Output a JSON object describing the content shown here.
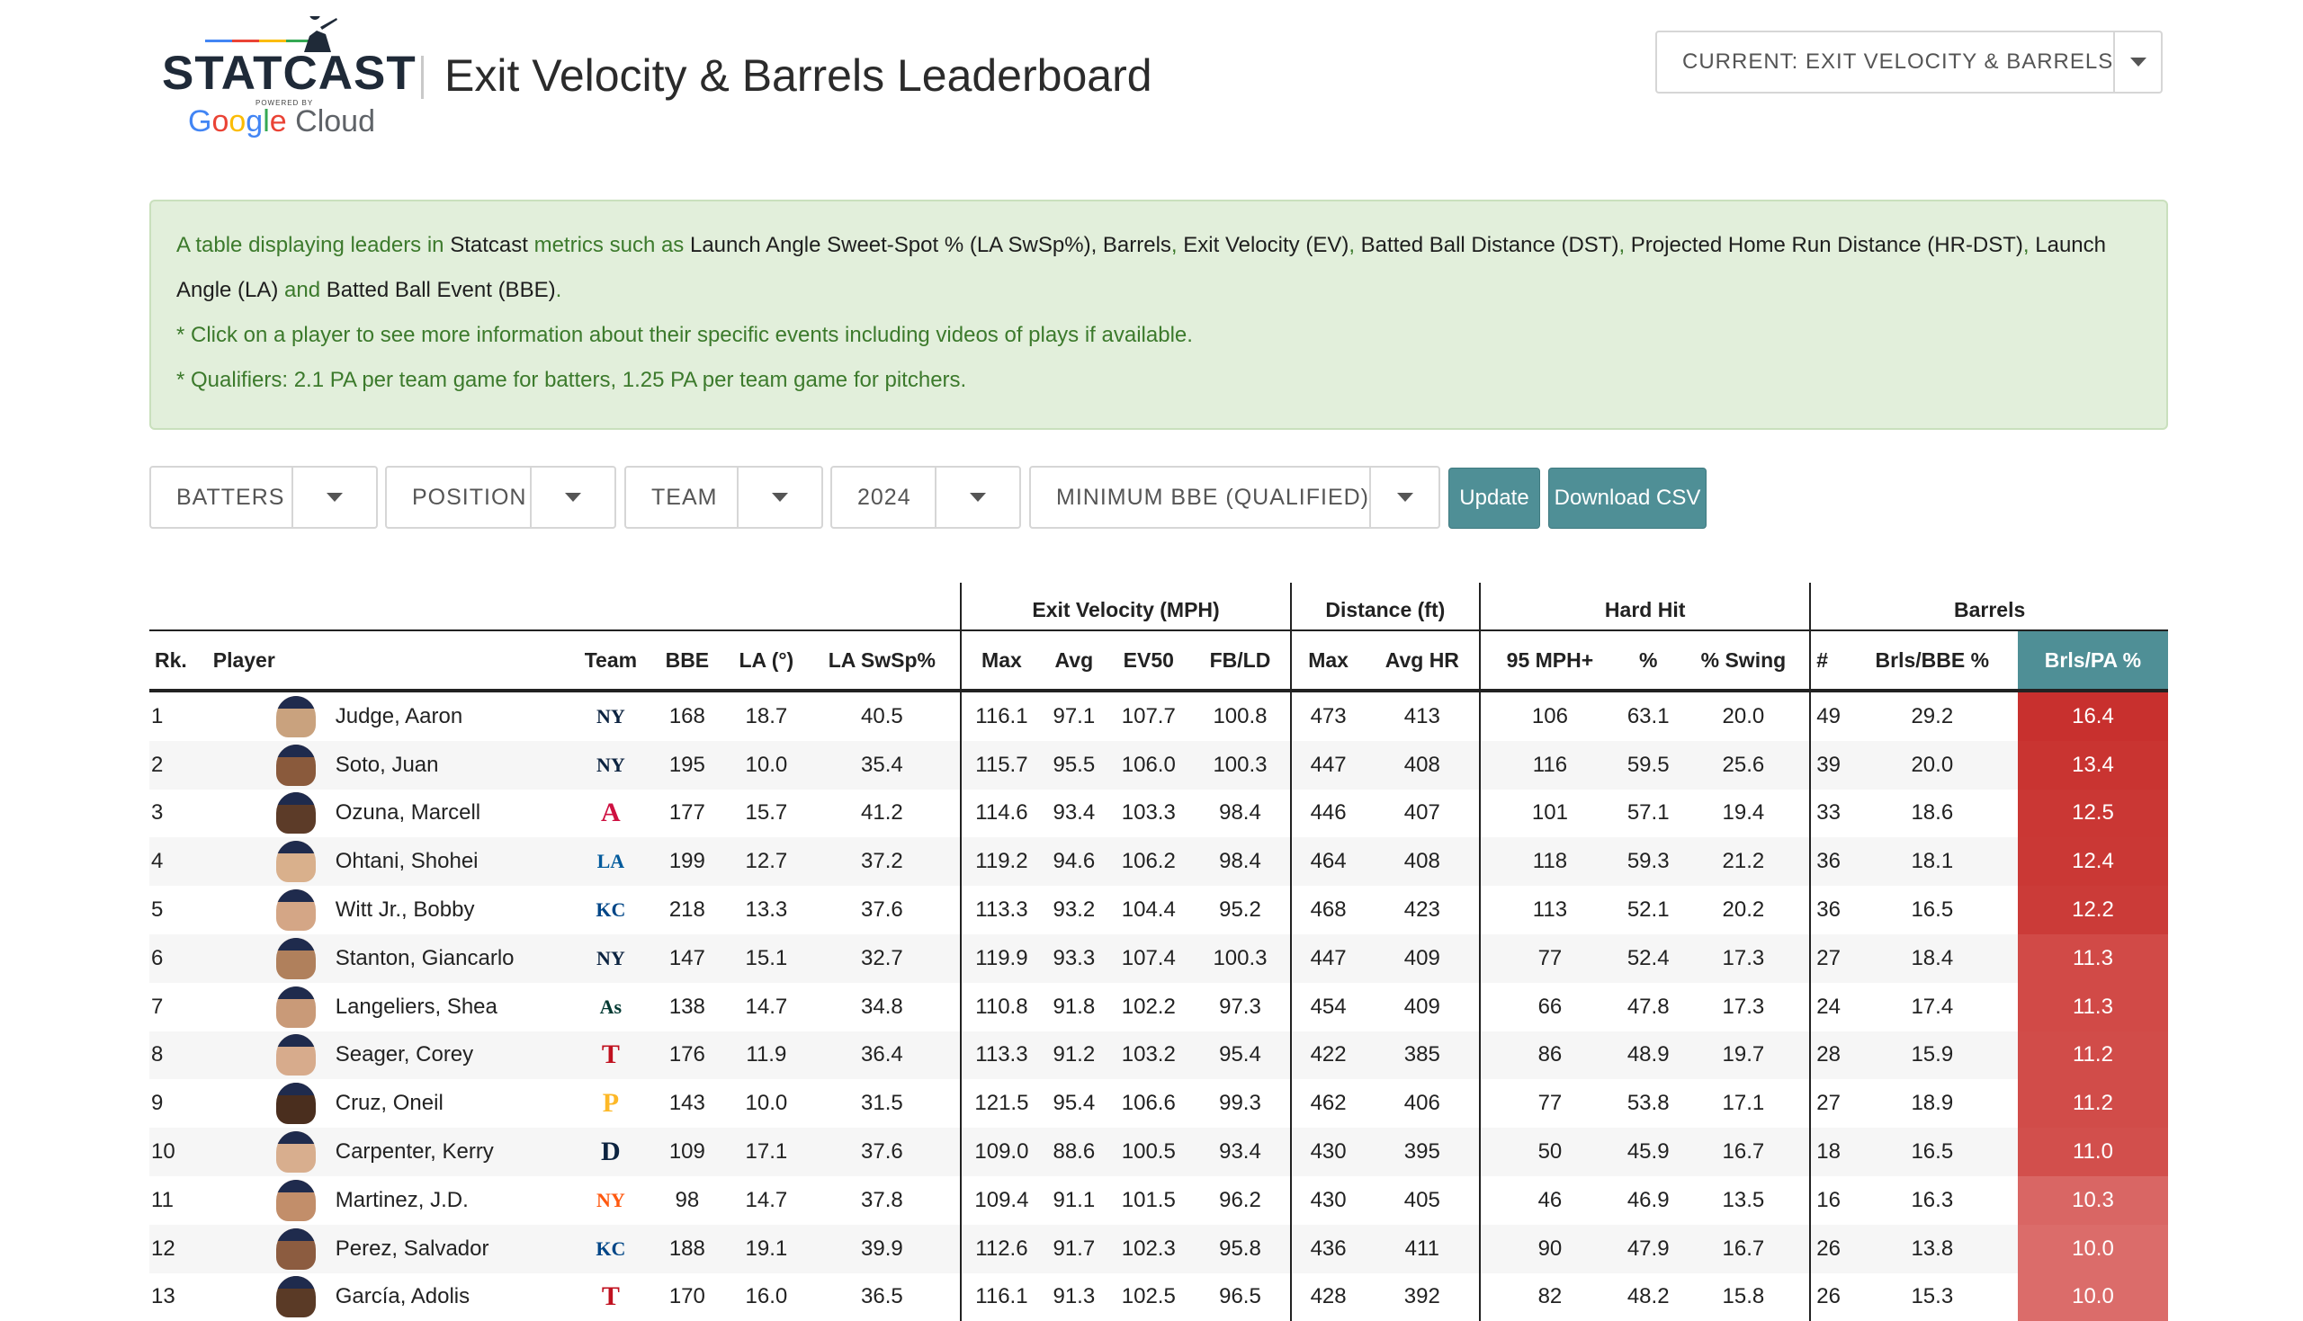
{
  "header": {
    "logo_text": "STATCAST",
    "logo_powered": "POWERED BY",
    "logo_cloud_text": "Cloud",
    "title": "Exit Velocity & Barrels Leaderboard",
    "view_select": "CURRENT: EXIT VELOCITY & BARRELS"
  },
  "info": {
    "line1_a": "A table displaying leaders in ",
    "line1_statcast": "Statcast",
    "line1_b": " metrics such as ",
    "m1": "Launch Angle Sweet-Spot % (LA SwSp%), Barrels",
    "m2": "Exit Velocity (EV)",
    "m3": "Batted Ball Distance (DST)",
    "m4": "Projected Home Run Distance (HR-DST)",
    "m5": "Launch Angle (LA)",
    "and": " and ",
    "m6": "Batted Ball Event (BBE)",
    "note1": "* Click on a player to see more information about their specific events including videos of plays if available.",
    "note2": "* Qualifiers: 2.1 PA per team game for batters, 1.25 PA per team game for pitchers."
  },
  "controls": {
    "player_type": "BATTERS",
    "position": "POSITION",
    "team": "TEAM",
    "year": "2024",
    "min_bbe": "MINIMUM BBE (QUALIFIED)",
    "update": "Update",
    "download": "Download CSV"
  },
  "table": {
    "groups": {
      "ev": "Exit Velocity (MPH)",
      "dist": "Distance (ft)",
      "hard": "Hard Hit",
      "barrels": "Barrels"
    },
    "columns": {
      "rk": "Rk.",
      "player": "Player",
      "team": "Team",
      "bbe": "BBE",
      "la": "LA (°)",
      "laswsp": "LA SwSp%",
      "max": "Max",
      "avg": "Avg",
      "ev50": "EV50",
      "fbld": "FB/LD",
      "dmax": "Max",
      "avghr": "Avg HR",
      "mph95": "95 MPH+",
      "pct": "%",
      "swing": "% Swing",
      "num": "#",
      "brlbbe": "Brls/BBE %",
      "brlpa": "Brls/PA %"
    },
    "colors": {
      "sort_header": "#4f8f96",
      "heat_high": "#c8302e",
      "heat_low": "#de7b79"
    },
    "rows": [
      {
        "rk": "1",
        "player": "Judge, Aaron",
        "team": "NY",
        "team_logo": "ny-yankees-logo",
        "team_color": "#0c2340",
        "skin": "#c9a27e",
        "bbe": "168",
        "la": "18.7",
        "laswsp": "40.5",
        "max": "116.1",
        "avg": "97.1",
        "ev50": "107.7",
        "fbld": "100.8",
        "dmax": "473",
        "avghr": "413",
        "mph95": "106",
        "pct": "63.1",
        "swing": "20.0",
        "num": "49",
        "brlbbe": "29.2",
        "brlpa": "16.4",
        "heat": "#c8302e"
      },
      {
        "rk": "2",
        "player": "Soto, Juan",
        "team": "NY",
        "team_logo": "ny-yankees-logo",
        "team_color": "#0c2340",
        "skin": "#8a5a3c",
        "bbe": "195",
        "la": "10.0",
        "laswsp": "35.4",
        "max": "115.7",
        "avg": "95.5",
        "ev50": "106.0",
        "fbld": "100.3",
        "dmax": "447",
        "avghr": "408",
        "mph95": "116",
        "pct": "59.5",
        "swing": "25.6",
        "num": "39",
        "brlbbe": "20.0",
        "brlpa": "13.4",
        "heat": "#c93431"
      },
      {
        "rk": "3",
        "player": "Ozuna, Marcell",
        "team": "A",
        "team_logo": "braves-logo",
        "team_color": "#ce1141",
        "skin": "#5c3b28",
        "bbe": "177",
        "la": "15.7",
        "laswsp": "41.2",
        "max": "114.6",
        "avg": "93.4",
        "ev50": "103.3",
        "fbld": "98.4",
        "dmax": "446",
        "avghr": "407",
        "mph95": "101",
        "pct": "57.1",
        "swing": "19.4",
        "num": "33",
        "brlbbe": "18.6",
        "brlpa": "12.5",
        "heat": "#ca3734"
      },
      {
        "rk": "4",
        "player": "Ohtani, Shohei",
        "team": "LA",
        "team_logo": "dodgers-logo",
        "team_color": "#005a9c",
        "skin": "#d9b08c",
        "bbe": "199",
        "la": "12.7",
        "laswsp": "37.2",
        "max": "119.2",
        "avg": "94.6",
        "ev50": "106.2",
        "fbld": "98.4",
        "dmax": "464",
        "avghr": "408",
        "mph95": "118",
        "pct": "59.3",
        "swing": "21.2",
        "num": "36",
        "brlbbe": "18.1",
        "brlpa": "12.4",
        "heat": "#ca3835"
      },
      {
        "rk": "5",
        "player": "Witt Jr., Bobby",
        "team": "KC",
        "team_logo": "royals-logo",
        "team_color": "#004687",
        "skin": "#d4a686",
        "bbe": "218",
        "la": "13.3",
        "laswsp": "37.6",
        "max": "113.3",
        "avg": "93.2",
        "ev50": "104.4",
        "fbld": "95.2",
        "dmax": "468",
        "avghr": "423",
        "mph95": "113",
        "pct": "52.1",
        "swing": "20.2",
        "num": "36",
        "brlbbe": "16.5",
        "brlpa": "12.2",
        "heat": "#cb3b38"
      },
      {
        "rk": "6",
        "player": "Stanton, Giancarlo",
        "team": "NY",
        "team_logo": "ny-yankees-logo",
        "team_color": "#0c2340",
        "skin": "#b0805c",
        "bbe": "147",
        "la": "15.1",
        "laswsp": "32.7",
        "max": "119.9",
        "avg": "93.3",
        "ev50": "107.4",
        "fbld": "100.3",
        "dmax": "447",
        "avghr": "409",
        "mph95": "77",
        "pct": "52.4",
        "swing": "17.3",
        "num": "27",
        "brlbbe": "18.4",
        "brlpa": "11.3",
        "heat": "#d14a47"
      },
      {
        "rk": "7",
        "player": "Langeliers, Shea",
        "team": "As",
        "team_logo": "athletics-logo",
        "team_color": "#003831",
        "skin": "#c99a78",
        "bbe": "138",
        "la": "14.7",
        "laswsp": "34.8",
        "max": "110.8",
        "avg": "91.8",
        "ev50": "102.2",
        "fbld": "97.3",
        "dmax": "454",
        "avghr": "409",
        "mph95": "66",
        "pct": "47.8",
        "swing": "17.3",
        "num": "24",
        "brlbbe": "17.4",
        "brlpa": "11.3",
        "heat": "#d14a47"
      },
      {
        "rk": "8",
        "player": "Seager, Corey",
        "team": "T",
        "team_logo": "rangers-logo",
        "team_color": "#c0111f",
        "skin": "#d7ab8c",
        "bbe": "176",
        "la": "11.9",
        "laswsp": "36.4",
        "max": "113.3",
        "avg": "91.2",
        "ev50": "103.2",
        "fbld": "95.4",
        "dmax": "422",
        "avghr": "385",
        "mph95": "86",
        "pct": "48.9",
        "swing": "19.7",
        "num": "28",
        "brlbbe": "15.9",
        "brlpa": "11.2",
        "heat": "#d14c49"
      },
      {
        "rk": "9",
        "player": "Cruz, Oneil",
        "team": "P",
        "team_logo": "pirates-logo",
        "team_color": "#fdb827",
        "skin": "#4a2e1e",
        "bbe": "143",
        "la": "10.0",
        "laswsp": "31.5",
        "max": "121.5",
        "avg": "95.4",
        "ev50": "106.6",
        "fbld": "99.3",
        "dmax": "462",
        "avghr": "406",
        "mph95": "77",
        "pct": "53.8",
        "swing": "17.1",
        "num": "27",
        "brlbbe": "18.9",
        "brlpa": "11.2",
        "heat": "#d14c49"
      },
      {
        "rk": "10",
        "player": "Carpenter, Kerry",
        "team": "D",
        "team_logo": "tigers-logo",
        "team_color": "#0c2340",
        "skin": "#d8ae8e",
        "bbe": "109",
        "la": "17.1",
        "laswsp": "37.6",
        "max": "109.0",
        "avg": "88.6",
        "ev50": "100.5",
        "fbld": "93.4",
        "dmax": "430",
        "avghr": "395",
        "mph95": "50",
        "pct": "45.9",
        "swing": "16.7",
        "num": "18",
        "brlbbe": "16.5",
        "brlpa": "11.0",
        "heat": "#d24f4c"
      },
      {
        "rk": "11",
        "player": "Martinez, J.D.",
        "team": "NY",
        "team_logo": "mets-logo",
        "team_color": "#ff5910",
        "skin": "#c28e6a",
        "bbe": "98",
        "la": "14.7",
        "laswsp": "37.8",
        "max": "109.4",
        "avg": "91.1",
        "ev50": "101.5",
        "fbld": "96.2",
        "dmax": "430",
        "avghr": "405",
        "mph95": "46",
        "pct": "46.9",
        "swing": "13.5",
        "num": "16",
        "brlbbe": "16.3",
        "brlpa": "10.3",
        "heat": "#d96664"
      },
      {
        "rk": "12",
        "player": "Perez, Salvador",
        "team": "KC",
        "team_logo": "royals-logo",
        "team_color": "#004687",
        "skin": "#8c5c40",
        "bbe": "188",
        "la": "19.1",
        "laswsp": "39.9",
        "max": "112.6",
        "avg": "91.7",
        "ev50": "102.3",
        "fbld": "95.8",
        "dmax": "436",
        "avghr": "411",
        "mph95": "90",
        "pct": "47.9",
        "swing": "16.7",
        "num": "26",
        "brlbbe": "13.8",
        "brlpa": "10.0",
        "heat": "#db6c6a"
      },
      {
        "rk": "13",
        "player": "García, Adolis",
        "team": "T",
        "team_logo": "rangers-logo",
        "team_color": "#c0111f",
        "skin": "#5a3a26",
        "bbe": "170",
        "la": "16.0",
        "laswsp": "36.5",
        "max": "116.1",
        "avg": "91.3",
        "ev50": "102.5",
        "fbld": "96.5",
        "dmax": "428",
        "avghr": "392",
        "mph95": "82",
        "pct": "48.2",
        "swing": "15.8",
        "num": "26",
        "brlbbe": "15.3",
        "brlpa": "10.0",
        "heat": "#db6c6a"
      }
    ]
  }
}
